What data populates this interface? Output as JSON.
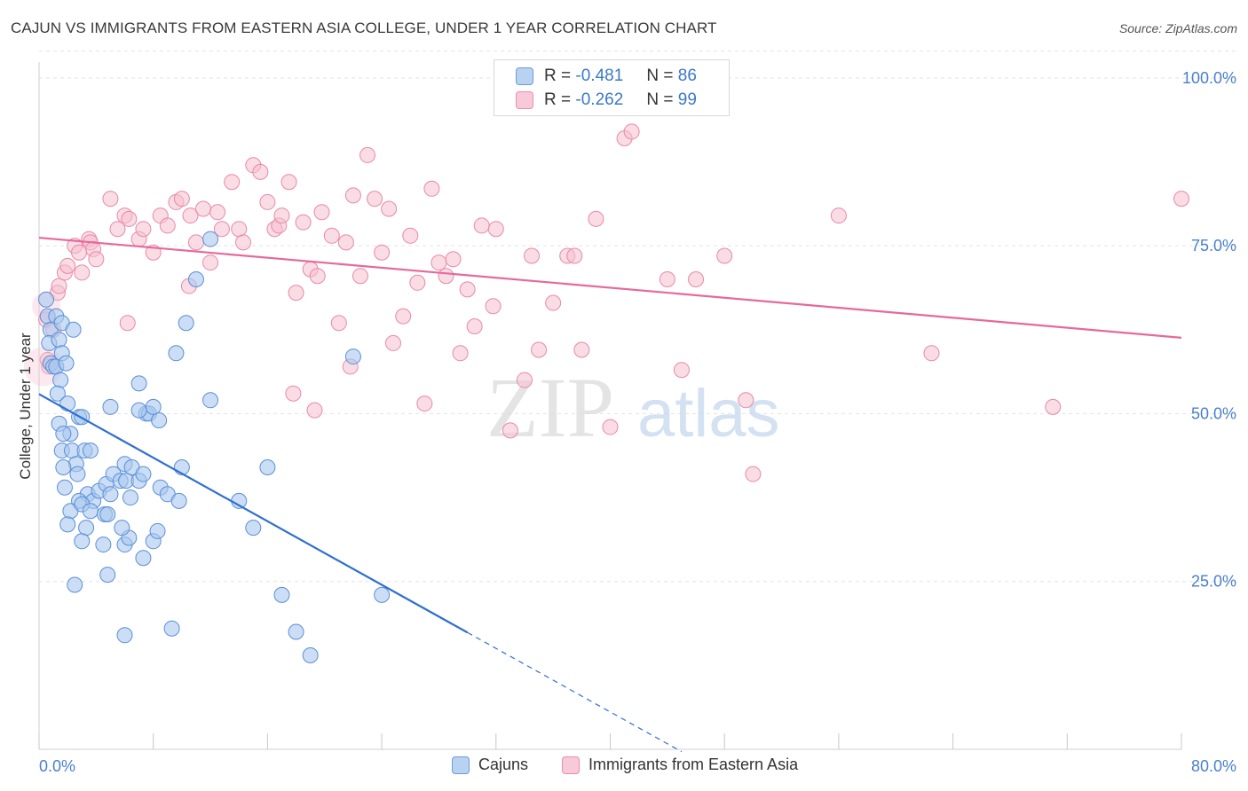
{
  "title": "CAJUN VS IMMIGRANTS FROM EASTERN ASIA COLLEGE, UNDER 1 YEAR CORRELATION CHART",
  "source": "Source: ZipAtlas.com",
  "watermark": {
    "zip": "ZIP",
    "atlas": "atlas"
  },
  "colors": {
    "blue_fill": "#a9c8ef",
    "blue_stroke": "#5b8fd6",
    "blue_line": "#2f6fd1",
    "pink_fill": "#f6bfd0",
    "pink_stroke": "#e889a8",
    "pink_line": "#e5699a",
    "tick_label": "#4a7fcc",
    "grid": "#e4e4e4"
  },
  "stats": {
    "rows": [
      {
        "r_label": "R =",
        "r_value": "-0.481",
        "n_label": "N =",
        "n_value": "86"
      },
      {
        "r_label": "R =",
        "r_value": "-0.262",
        "n_label": "N =",
        "n_value": "99"
      }
    ]
  },
  "legend": {
    "items": [
      "Cajuns",
      "Immigrants from Eastern Asia"
    ]
  },
  "chart_data": {
    "type": "scatter",
    "xlabel": "",
    "ylabel": "College, Under 1 year",
    "xlim": [
      0,
      80
    ],
    "ylim": [
      0,
      105
    ],
    "x_tick_labels": [
      "0.0%",
      "80.0%"
    ],
    "y_ticks": [
      25,
      50,
      75,
      100
    ],
    "y_tick_labels": [
      "25.0%",
      "50.0%",
      "75.0%",
      "100.0%"
    ],
    "grid": true,
    "legend_position": "bottom-center",
    "series": [
      {
        "name": "Cajuns",
        "trend": {
          "x0": 0,
          "y0": 52.9,
          "x1": 30,
          "y1": 17.4,
          "dash_to_x": 45
        },
        "points": [
          [
            0.5,
            67
          ],
          [
            0.6,
            64.5
          ],
          [
            0.8,
            62.5
          ],
          [
            1.2,
            64.5
          ],
          [
            1.6,
            63.5
          ],
          [
            0.7,
            60.5
          ],
          [
            1.4,
            61
          ],
          [
            0.8,
            57.5
          ],
          [
            1.0,
            57
          ],
          [
            1.2,
            57
          ],
          [
            1.6,
            59
          ],
          [
            2.4,
            62.5
          ],
          [
            1.5,
            55
          ],
          [
            1.3,
            53
          ],
          [
            1.9,
            57.5
          ],
          [
            2.0,
            51.5
          ],
          [
            1.4,
            48.5
          ],
          [
            2.2,
            47
          ],
          [
            2.8,
            49.5
          ],
          [
            3.0,
            49.5
          ],
          [
            1.7,
            47
          ],
          [
            1.6,
            44.5
          ],
          [
            2.3,
            44.5
          ],
          [
            2.6,
            42.5
          ],
          [
            1.7,
            42
          ],
          [
            2.7,
            41
          ],
          [
            3.2,
            44.5
          ],
          [
            3.6,
            44.5
          ],
          [
            1.8,
            39
          ],
          [
            3.4,
            38
          ],
          [
            2.8,
            37
          ],
          [
            3.8,
            37
          ],
          [
            2.2,
            35.5
          ],
          [
            3.0,
            36.5
          ],
          [
            3.6,
            35.5
          ],
          [
            4.2,
            38.5
          ],
          [
            4.7,
            39.5
          ],
          [
            3.3,
            33
          ],
          [
            4.6,
            35
          ],
          [
            4.8,
            35
          ],
          [
            2.0,
            33.5
          ],
          [
            4.5,
            30.5
          ],
          [
            3.0,
            31
          ],
          [
            6.0,
            30.5
          ],
          [
            6.3,
            31.5
          ],
          [
            5.8,
            33
          ],
          [
            7.3,
            28.5
          ],
          [
            4.8,
            26
          ],
          [
            2.5,
            24.5
          ],
          [
            8.0,
            31
          ],
          [
            8.3,
            32.5
          ],
          [
            6.4,
            37.5
          ],
          [
            5.0,
            38
          ],
          [
            5.2,
            41
          ],
          [
            5.7,
            40
          ],
          [
            6.0,
            42.5
          ],
          [
            6.1,
            40
          ],
          [
            6.5,
            42
          ],
          [
            7.0,
            40
          ],
          [
            7.3,
            41
          ],
          [
            8.5,
            39
          ],
          [
            9.0,
            38
          ],
          [
            9.8,
            37
          ],
          [
            10.0,
            42
          ],
          [
            7.5,
            50
          ],
          [
            7.7,
            50
          ],
          [
            8.4,
            49
          ],
          [
            9.6,
            59
          ],
          [
            10.3,
            63.5
          ],
          [
            11.0,
            70
          ],
          [
            12.0,
            76
          ],
          [
            7.0,
            54.5
          ],
          [
            8.0,
            51
          ],
          [
            7.0,
            50.5
          ],
          [
            12.0,
            52
          ],
          [
            15.0,
            33
          ],
          [
            16.0,
            42
          ],
          [
            14.0,
            37
          ],
          [
            18.0,
            17.5
          ],
          [
            17.0,
            23
          ],
          [
            19.0,
            14
          ],
          [
            22.0,
            58.5
          ],
          [
            24.0,
            23
          ],
          [
            6.0,
            17
          ],
          [
            9.3,
            18
          ],
          [
            5.0,
            51
          ]
        ]
      },
      {
        "name": "Immigrants from Eastern Asia",
        "trend": {
          "x0": 0,
          "y0": 76.2,
          "x1": 80,
          "y1": 61.3
        },
        "points": [
          [
            0.5,
            64
          ],
          [
            0.6,
            58
          ],
          [
            0.7,
            57
          ],
          [
            1.0,
            62.5
          ],
          [
            1.3,
            68
          ],
          [
            1.4,
            69
          ],
          [
            1.8,
            71
          ],
          [
            2.0,
            72
          ],
          [
            2.5,
            75
          ],
          [
            2.8,
            74
          ],
          [
            3.0,
            71
          ],
          [
            3.5,
            76
          ],
          [
            3.6,
            75.5
          ],
          [
            3.8,
            74.5
          ],
          [
            4.0,
            73
          ],
          [
            5.0,
            82
          ],
          [
            5.5,
            77.5
          ],
          [
            6.0,
            79.5
          ],
          [
            6.3,
            79
          ],
          [
            7.0,
            76
          ],
          [
            7.3,
            77.5
          ],
          [
            8.0,
            74
          ],
          [
            8.5,
            79.5
          ],
          [
            9.0,
            78
          ],
          [
            9.6,
            81.5
          ],
          [
            10.0,
            82
          ],
          [
            10.6,
            79.5
          ],
          [
            11.0,
            75.5
          ],
          [
            11.5,
            80.5
          ],
          [
            12.0,
            72.5
          ],
          [
            12.5,
            80
          ],
          [
            12.8,
            77.5
          ],
          [
            13.5,
            84.5
          ],
          [
            14.0,
            77.5
          ],
          [
            14.3,
            75.5
          ],
          [
            15.0,
            87
          ],
          [
            15.5,
            86
          ],
          [
            16.0,
            81.5
          ],
          [
            16.5,
            77.5
          ],
          [
            16.8,
            78
          ],
          [
            17.0,
            79.5
          ],
          [
            17.5,
            84.5
          ],
          [
            18.0,
            68
          ],
          [
            18.5,
            78.5
          ],
          [
            19.0,
            71.5
          ],
          [
            19.5,
            70.5
          ],
          [
            19.8,
            80
          ],
          [
            20.5,
            76.5
          ],
          [
            21.0,
            63.5
          ],
          [
            21.5,
            75.5
          ],
          [
            22.0,
            82.5
          ],
          [
            22.5,
            70.5
          ],
          [
            23.0,
            88.5
          ],
          [
            23.5,
            82
          ],
          [
            24.0,
            74
          ],
          [
            24.5,
            80.5
          ],
          [
            24.8,
            60.5
          ],
          [
            25.5,
            64.5
          ],
          [
            26.0,
            76.5
          ],
          [
            26.5,
            69.5
          ],
          [
            27.0,
            51.5
          ],
          [
            27.5,
            83.5
          ],
          [
            28.0,
            72.5
          ],
          [
            28.5,
            70.5
          ],
          [
            29.0,
            73
          ],
          [
            29.5,
            59
          ],
          [
            30.0,
            68.5
          ],
          [
            30.5,
            63
          ],
          [
            31.0,
            78
          ],
          [
            31.8,
            66
          ],
          [
            32.0,
            77.5
          ],
          [
            33.0,
            47.5
          ],
          [
            34.0,
            55
          ],
          [
            34.5,
            73.5
          ],
          [
            35.0,
            59.5
          ],
          [
            36.0,
            66.5
          ],
          [
            37.0,
            73.5
          ],
          [
            37.5,
            73.5
          ],
          [
            38.0,
            59.5
          ],
          [
            39.0,
            79
          ],
          [
            40.0,
            48
          ],
          [
            41.0,
            91
          ],
          [
            41.5,
            92
          ],
          [
            42.0,
            97
          ],
          [
            44.0,
            70
          ],
          [
            45.0,
            56.5
          ],
          [
            46.0,
            70
          ],
          [
            48.0,
            73.5
          ],
          [
            49.5,
            52
          ],
          [
            50.0,
            41
          ],
          [
            56.0,
            79.5
          ],
          [
            62.5,
            59
          ],
          [
            71.0,
            51
          ],
          [
            80.0,
            82
          ],
          [
            10.5,
            69
          ],
          [
            6.2,
            63.5
          ],
          [
            17.8,
            53
          ],
          [
            19.3,
            50.5
          ],
          [
            21.8,
            57
          ]
        ]
      }
    ]
  }
}
